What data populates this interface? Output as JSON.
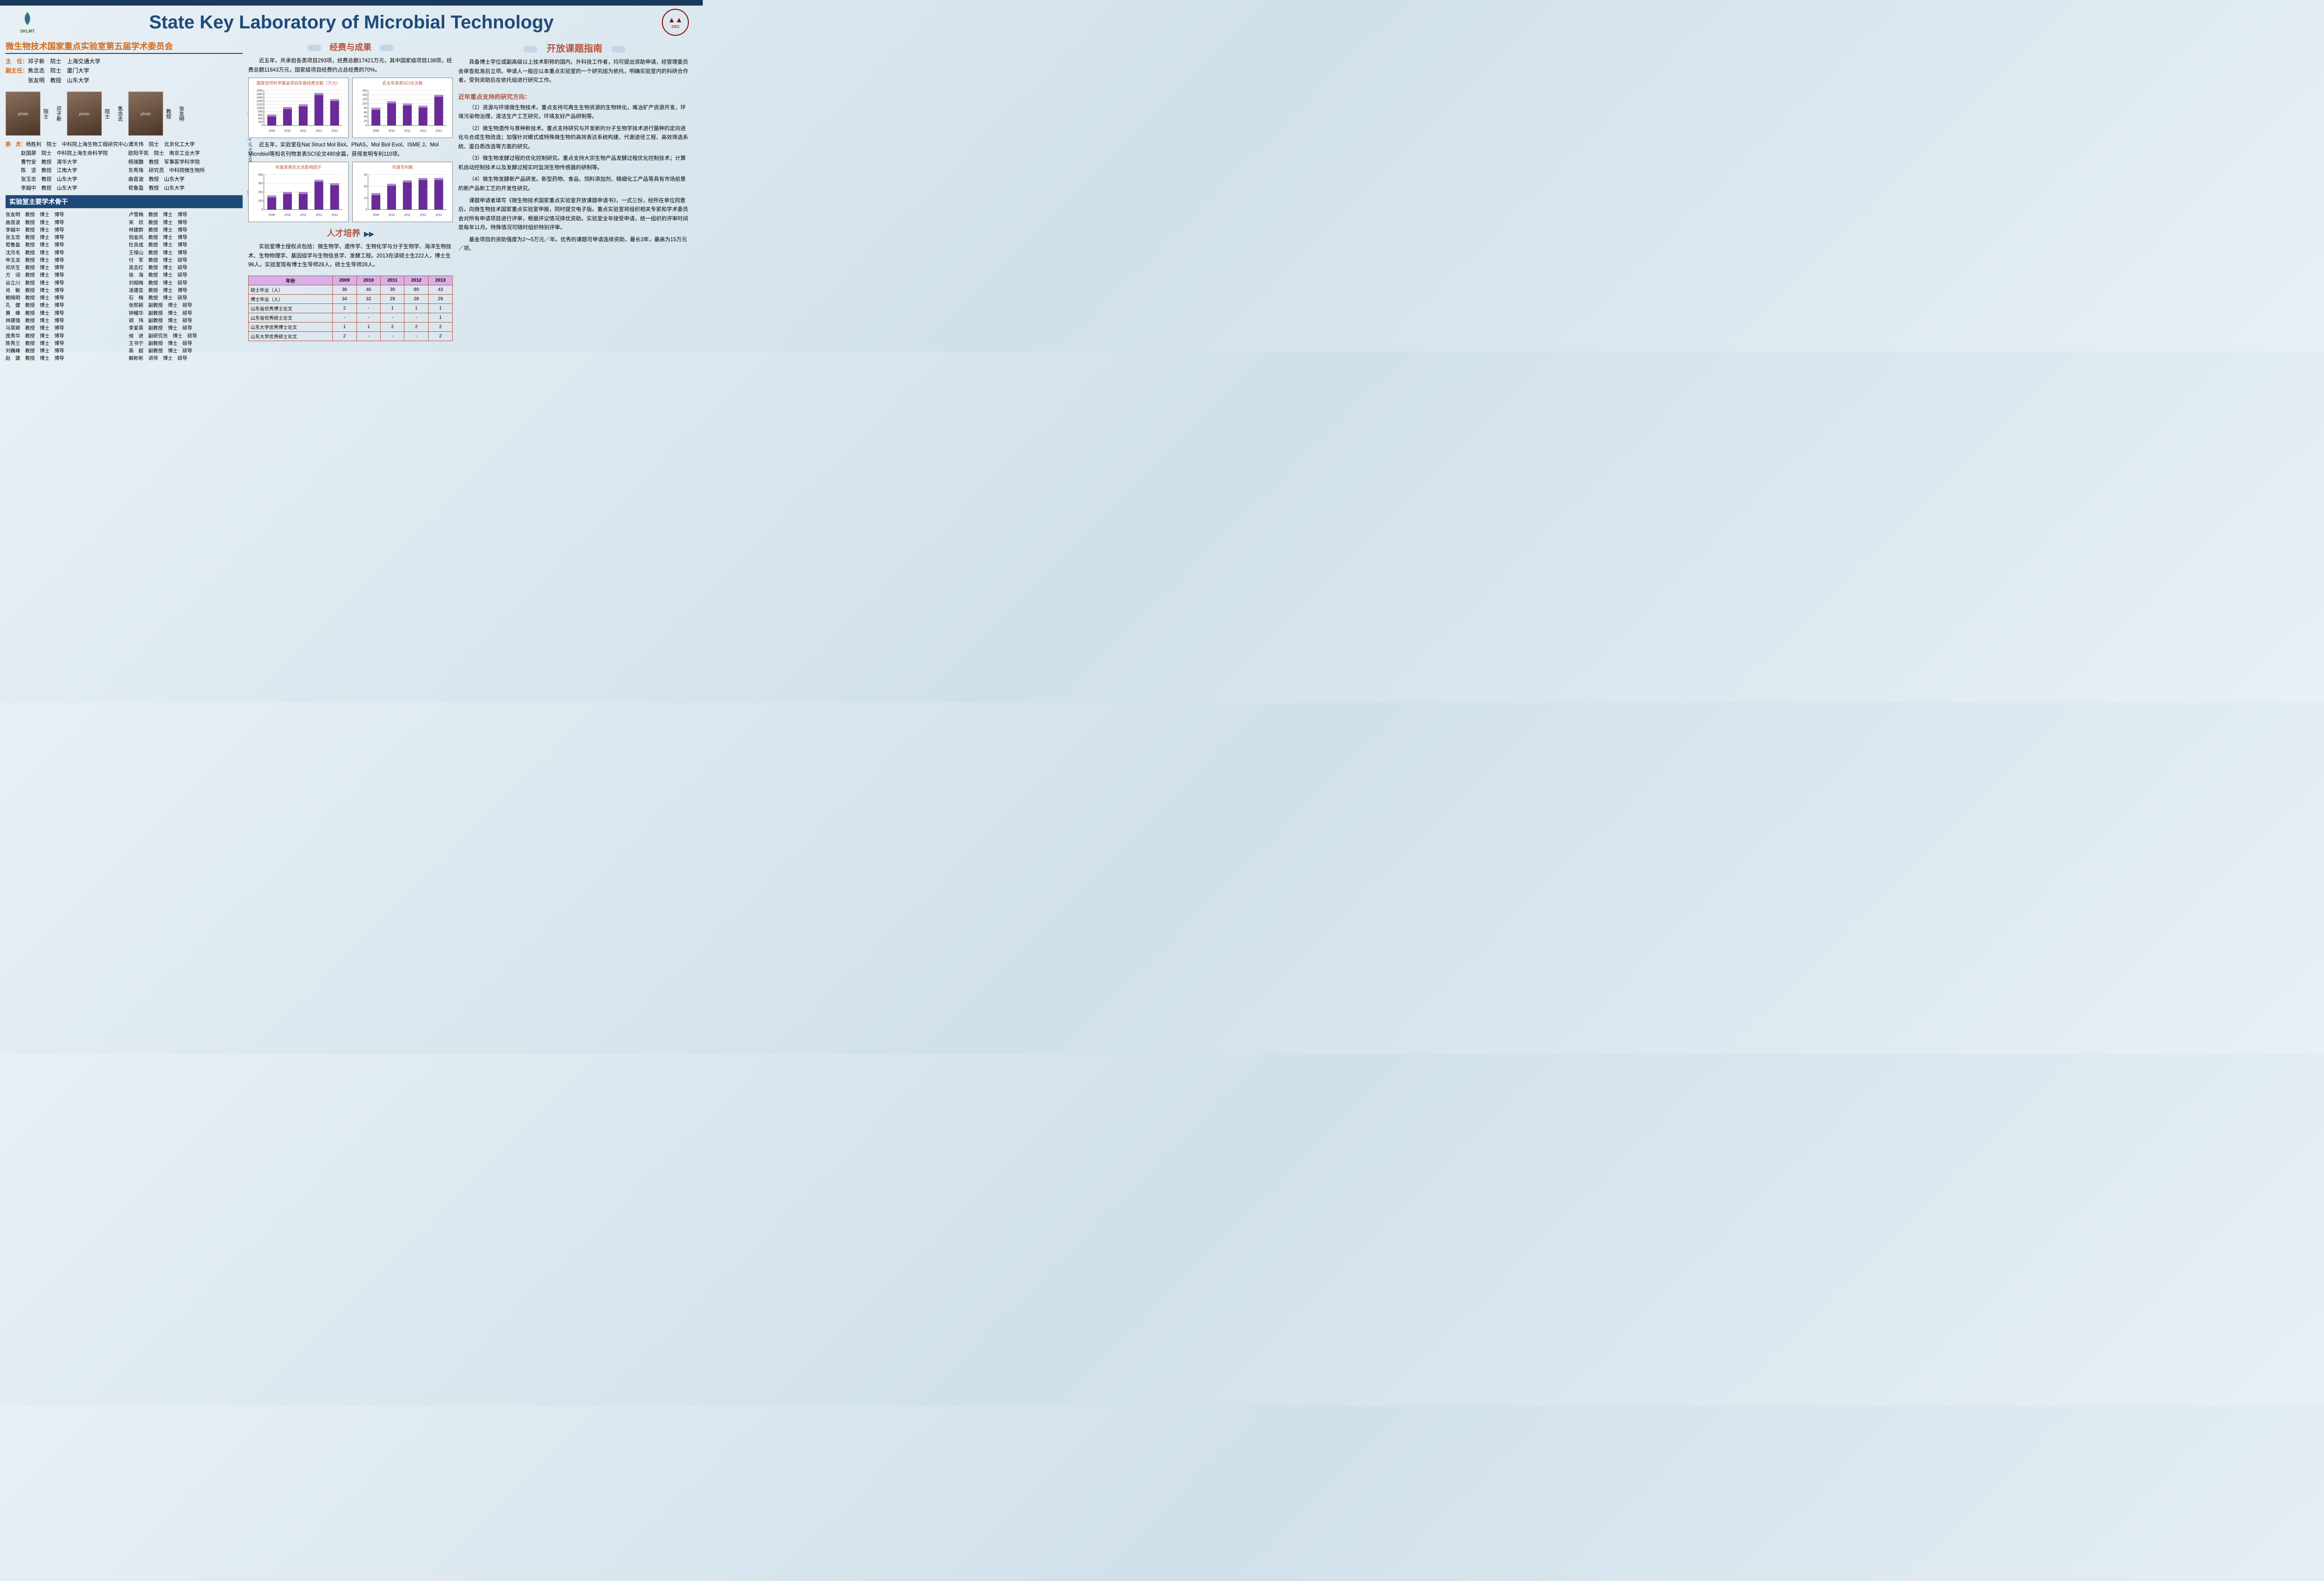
{
  "header": {
    "main_title": "State Key Laboratory of Microbial Technology",
    "left_logo_text": "SKLMT",
    "left_logo_sub": "微生物技术国家重点实验室",
    "right_logo_text": "山东大学",
    "right_logo_year": "1901",
    "vertical_text": "State Key Laboratory of Microbial Technology"
  },
  "committee": {
    "title": "微生物技术国家重点实验室第五届学术委员会",
    "director_label": "主　任：",
    "director": "邓子新　院士　上海交通大学",
    "vice_label": "副主任：",
    "vice1": "焦念志　院士　厦门大学",
    "vice2": "张友明　教授　山东大学",
    "photos": [
      {
        "name": "邓子新",
        "title": "院士"
      },
      {
        "name": "焦念志",
        "title": "院士"
      },
      {
        "name": "张友明",
        "title": "教授"
      }
    ],
    "members_label": "委　员：",
    "members": [
      "杨胜利　院士　中科院上海生物工程研究中心",
      "谭天伟　院士　北京化工大学",
      "赵国屏　院士　中科院上海生命科学院",
      "欧阳平凯　院士　南京工业大学",
      "曹竹安　教授　清华大学",
      "杨瑞馥　教授　军事医学科学院",
      "陈　坚　教授　江南大学",
      "东秀珠　研究员　中科院微生物所",
      "张玉忠　教授　山东大学",
      "曲音波　教授　山东大学",
      "李越中　教授　山东大学",
      "荀鲁盈　教授　山东大学"
    ]
  },
  "staff": {
    "title": "实验室主要学术骨干",
    "list": [
      "张友明　教授　博士　博导",
      "卢雪梅　教授　博士　博导",
      "曲音波　教授　博士　博导",
      "宋　欣　教授　博士　博导",
      "李越中　教授　博士　博导",
      "林建群　教授　博士　博导",
      "张玉忠　教授　博士　博导",
      "倪金凤　教授　博士　博导",
      "荀鲁盈　教授　博士　博导",
      "杜良成　教授　博士　博导",
      "沈月毛　教授　博士　博导",
      "王禄山　教授　博士　博导",
      "申玉龙　教授　博士　博导",
      "付　军　教授　博士　硕导",
      "祁庆生　教授　博士　博导",
      "吴志红　教授　博士　硕导",
      "方　诩　教授　博士　博导",
      "徐　海　教授　博士　硕导",
      "谷立川　教授　博士　博导",
      "刘相梅　教授　博士　硕导",
      "肖　敏　教授　博士　博导",
      "凌建亚　教授　博士　博导",
      "鲍晓明　教授　博士　博导",
      "石　梅　教授　博士　硕导",
      "孔　健　教授　博士　博导",
      "张熙颖　副教授　博士　硕导",
      "黄　峰　教授　博士　博导",
      "钟耀华　副教授　博士　硕导",
      "林建强　教授　博士　博导",
      "胡　玮　副教授　博士　硕导",
      "马翠卿　教授　博士　博导",
      "李爱英　副教授　博士　硕导",
      "庞秀华　教授　博士　博导",
      "候　进　副研究员　博士　硕导",
      "陈秀兰　教授　博士　博导",
      "王书宁　副教授　博士　硕导",
      "刘巍峰　教授　博士　博导",
      "高　超　副教授　博士　硕导",
      "赵　建　教授　博士　博导",
      "解彬彬　讲师　博士　硕导"
    ]
  },
  "funding": {
    "title": "经费与成果",
    "intro": "近五年，共承担各类项目293项，经费总额17421万元，其中国家级项目138项，经费总额11843万元，国家级项目经费约占总经费的70%。",
    "outro": "近五年，实验室在Nat Struct Mol Biol、PNAS、Mol Biol Evol、ISME J、Mol Microbiol等知名刊物发表SCI论文480余篇，获得发明专利110项。",
    "chart1": {
      "title": "国家自然科学基金项目年度经费总额（万元）",
      "type": "bar",
      "categories": [
        "2009",
        "2010",
        "2011",
        "2012",
        "2013"
      ],
      "values": [
        620,
        1050,
        1200,
        1850,
        1500
      ],
      "ylim": [
        0,
        2000
      ],
      "ytick_step": 200,
      "bar_color": "#6a2a9a",
      "border_color": "#888888",
      "grid_color": "#cccccc",
      "text_color": "#b8523a"
    },
    "chart2": {
      "title": "近五年发表SCI论文数",
      "type": "bar",
      "categories": [
        "2009",
        "2010",
        "2011",
        "2012",
        "2013"
      ],
      "values": [
        80,
        110,
        100,
        90,
        140
      ],
      "ylim": [
        0,
        160
      ],
      "ytick_step": 20,
      "bar_color": "#6a2a9a",
      "border_color": "#888888",
      "grid_color": "#cccccc",
      "text_color": "#b8523a"
    },
    "chart3": {
      "title": "年度发表论文总影响因子",
      "type": "bar",
      "categories": [
        "2009",
        "2010",
        "2011",
        "2012",
        "2013"
      ],
      "values": [
        160,
        200,
        200,
        340,
        300
      ],
      "ylim": [
        0,
        400
      ],
      "ytick_step": 100,
      "bar_color": "#6a2a9a"
    },
    "chart4": {
      "title": "年度专利数",
      "type": "bar",
      "categories": [
        "2009",
        "2010",
        "2011",
        "2012",
        "2013"
      ],
      "values": [
        14,
        22,
        25,
        27,
        27
      ],
      "ylim": [
        0,
        30
      ],
      "ytick_step": 10,
      "bar_color": "#6a2a9a"
    }
  },
  "talent": {
    "title": "人才培养",
    "text": "实验室博士授权点包括：微生物学、遗传学、生物化学与分子生物学、海洋生物技术、生物物理学、基因组学与生物信息学、发酵工程。2013在读硕士生222人，博士生96人。实验室现有博士生导师28人，硕士生导师28人。",
    "table": {
      "header_bg": "#d8b0e8",
      "border_color": "#b8523a",
      "columns": [
        "年份",
        "2009",
        "2010",
        "2011",
        "2012",
        "2013"
      ],
      "rows": [
        [
          "硕士毕业（人）",
          "38",
          "46",
          "39",
          "89",
          "43"
        ],
        [
          "博士毕业（人）",
          "34",
          "32",
          "29",
          "28",
          "29"
        ],
        [
          "山东省优秀博士论文",
          "2",
          "-",
          "1",
          "1",
          "1"
        ],
        [
          "山东省优秀硕士论文",
          "-",
          "-",
          "-",
          "-",
          "1"
        ],
        [
          "山东大学优秀博士论文",
          "1",
          "1",
          "2",
          "2",
          "2"
        ],
        [
          "山东大学优秀硕士论文",
          "2",
          "-",
          "-",
          "-",
          "2"
        ]
      ]
    }
  },
  "guide": {
    "title": "开放课题指南",
    "p1": "具备博士学位或副高级以上技术职称的国内、外科技工作者，均可提出资助申请，经管理委员会审查批准后立项。申请人一般应以本重点实验室的一个研究组为依托，明确实验室内的科研合作者。受到资助后在依托组进行研究工作。",
    "sub": "近年重点支持的研究方向：",
    "items": [
      "（1）资源与环境微生物技术。重点支持可再生生物资源的生物转化，难冶矿产资源开发，环境污染物治理，清洁生产工艺研究，环境友好产品研制等。",
      "（2）微生物遗传与育种新技术。重点支持研究与开发新的分子生物学技术进行菌种的定向进化与合成生物改造；加强针对模式或特殊微生物的高效表达系统构建、代谢途径工程、高效筛选系统、蛋白质改造等方面的研究。",
      "（3）微生物发酵过程的优化控制研究。重点支持大宗生物产品发酵过程优化控制技术；计算机自动控制技术以及发酵过程实时监测生物传感器的研制等。",
      "（4）微生物发酵新产品研发。新型药物、食品、饲料添加剂、精细化工产品等具有市场前景的新产品新工艺的开发性研究。"
    ],
    "p2": "课题申请者填写《微生物技术国家重点实验室开放课题申请书》，一式三份，经所在单位同意后，向微生物技术国家重点实验室申报，同时提交电子版。重点实验室将组织相关专家和学术委员会对所有申请项目进行评审，根据评议情况择优资助。实验室全年接受申请，统一组织的评审时间是每年11月。特殊情况可随时组织特别评审。",
    "p3": "基金项目的资助强度为2～5万元／年。优秀的课题可申请连续资助，最长3年，最高为15万元／项。"
  },
  "colors": {
    "navy": "#1e4a7a",
    "orange": "#d2691e",
    "burnt": "#b8523a",
    "purple": "#6a2a9a"
  }
}
